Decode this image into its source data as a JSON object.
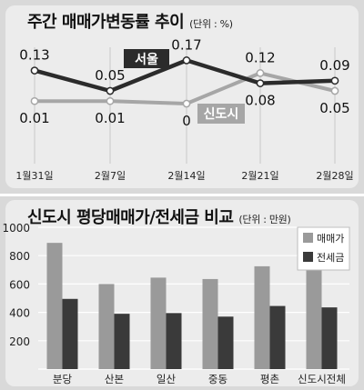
{
  "line_panel": {
    "title": "주간 매매가변동률 추이",
    "unit": "(단위 : %)"
  },
  "bar_panel": {
    "title": "신도시 평당매매가/전세금 비교",
    "unit": "(단위 : 만원)"
  },
  "colors": {
    "background": "#d9d9d9",
    "panel_background": "#ececec",
    "seoul_line": "#2b2b2b",
    "newtown_line": "#a6a6a6",
    "sale_bar": "#9a9a9a",
    "jeonse_bar": "#3a3a3a"
  },
  "chart_data": [
    {
      "type": "line",
      "title": "주간 매매가변동률 추이",
      "unit": "(단위 : %)",
      "categories": [
        "1월31일",
        "2월7일",
        "2월14일",
        "2월21일",
        "2월28일"
      ],
      "series": [
        {
          "name": "서울",
          "values": [
            0.13,
            0.05,
            0.17,
            0.08,
            0.09
          ],
          "labels": [
            "0.13",
            "0.05",
            "0.17",
            "0.08",
            "0.09"
          ]
        },
        {
          "name": "신도시",
          "values": [
            0.01,
            0.01,
            0,
            0.12,
            0.05
          ],
          "labels": [
            "0.01",
            "0.01",
            "0",
            "0.12",
            "0.05"
          ]
        }
      ],
      "grid": "vertical",
      "legend": "inline"
    },
    {
      "type": "bar",
      "title": "신도시 평당매매가/전세금 비교",
      "unit": "(단위 : 만원)",
      "categories": [
        "분당",
        "산본",
        "일산",
        "중동",
        "평촌",
        "신도시전체"
      ],
      "series": [
        {
          "name": "매매가",
          "values": [
            890,
            600,
            645,
            635,
            725,
            750
          ]
        },
        {
          "name": "전세금",
          "values": [
            495,
            390,
            395,
            370,
            445,
            435
          ]
        }
      ],
      "ylim": [
        0,
        1000
      ],
      "yticks": [
        200,
        400,
        600,
        800,
        1000
      ],
      "grid": "horizontal",
      "legend": "top-right"
    }
  ]
}
